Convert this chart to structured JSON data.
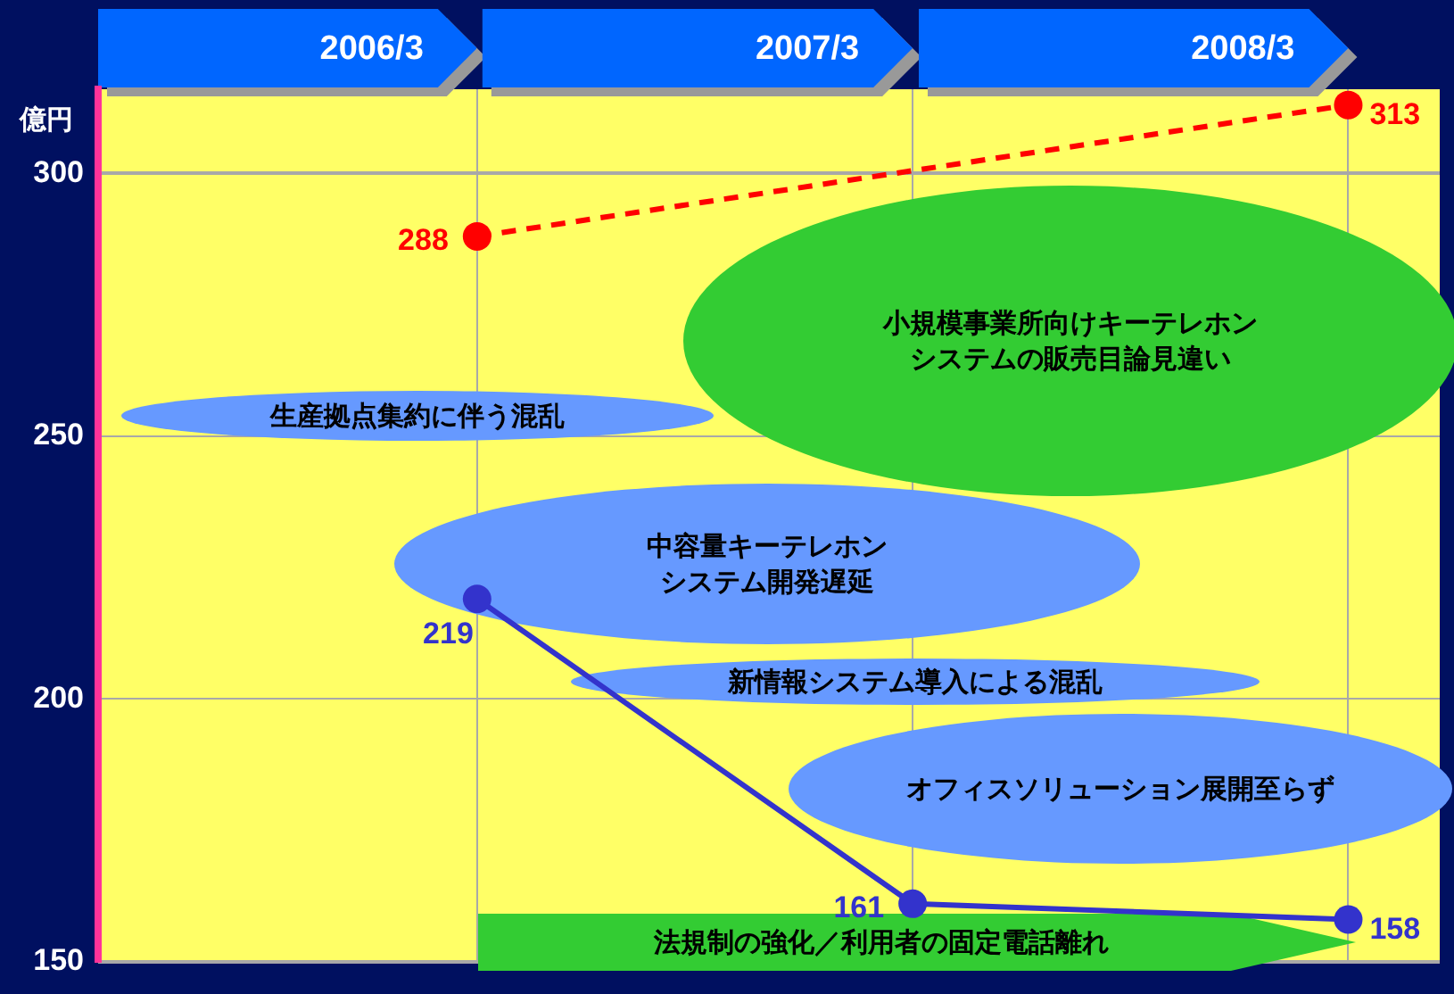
{
  "chart_data": {
    "type": "line",
    "ylabel": "億円",
    "categories": [
      "2006/3",
      "2007/3",
      "2008/3"
    ],
    "series": [
      {
        "color": "#ff0000",
        "values": [
          288,
          null,
          313
        ],
        "line_style": "dashed"
      },
      {
        "color": "#3333cc",
        "values": [
          219,
          161,
          158
        ],
        "line_style": "solid"
      }
    ],
    "ylim": [
      150,
      316
    ],
    "yticks": [
      150,
      200,
      250,
      300
    ],
    "grid": true,
    "legend": false,
    "marker": "circle",
    "data_labels": true,
    "annotations": [
      "生産拠点集約に伴う混乱",
      "小規模事業所向けキーテレホンシステムの販売目論見違い",
      "中容量キーテレホンシステム開発遅延",
      "新情報システム導入による混乱",
      "オフィスソリューション展開至らず",
      "法規制の強化／利用者の固定電話離れ"
    ]
  }
}
